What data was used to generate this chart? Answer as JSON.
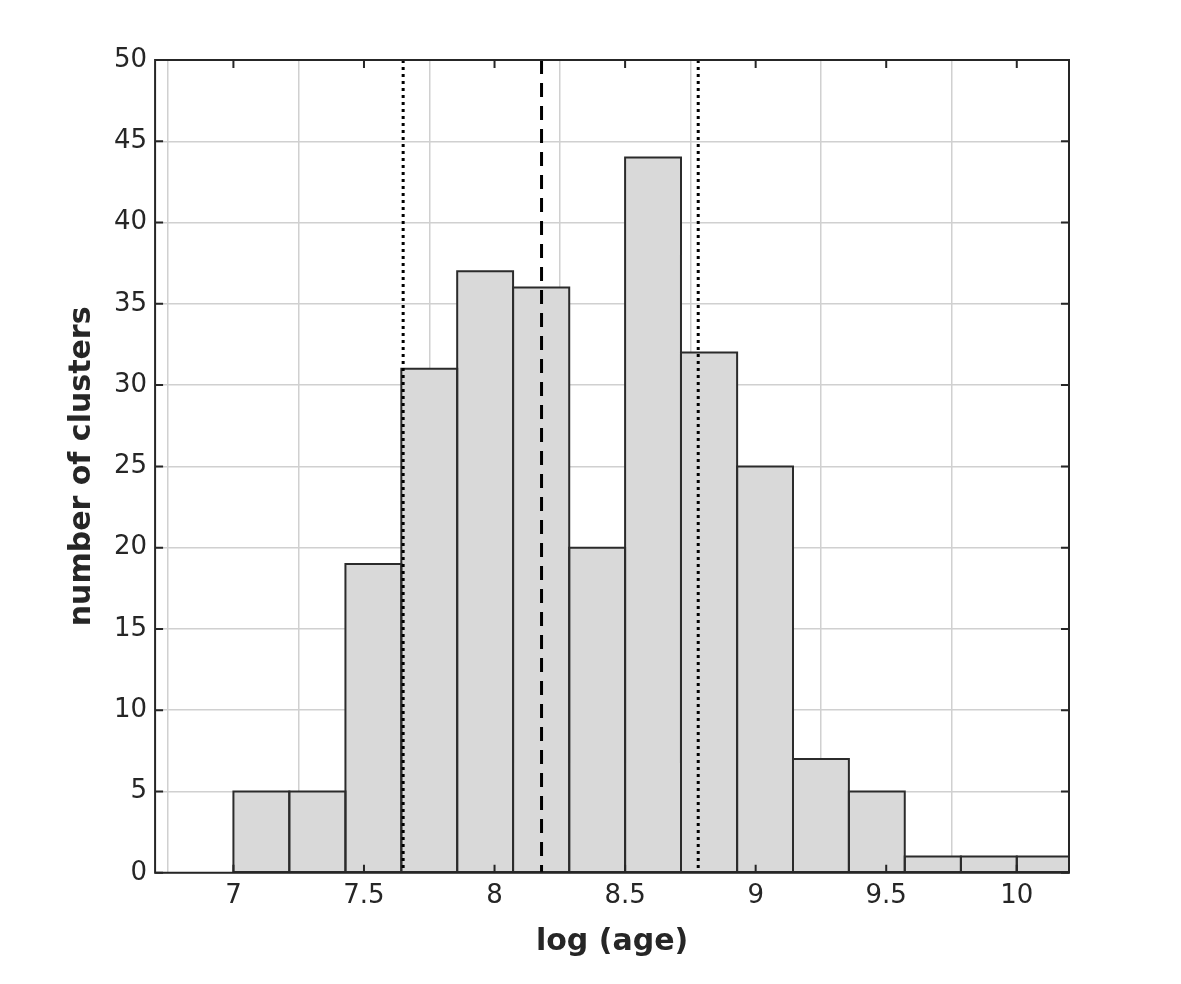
{
  "chart_data": {
    "type": "histogram",
    "xlabel": "log (age)",
    "ylabel": "number of clusters",
    "bins": [
      7,
      7.214,
      7.429,
      7.643,
      7.857,
      8.071,
      8.286,
      8.5,
      8.714,
      8.929,
      9.143,
      9.357,
      9.571,
      9.786,
      10,
      10.2
    ],
    "values": [
      5,
      5,
      19,
      31,
      37,
      36,
      20,
      44,
      32,
      25,
      7,
      5,
      1,
      1,
      1
    ],
    "color": "#d9d9d9",
    "xlim": [
      6.7,
      10.2
    ],
    "xticks": [
      7,
      7.5,
      8,
      8.5,
      9,
      9.5,
      10
    ],
    "ylim": [
      0,
      50
    ],
    "yticks": [
      0,
      5,
      10,
      15,
      20,
      25,
      30,
      35,
      40,
      45,
      50
    ],
    "grid": true,
    "ref_lines": [
      {
        "axis": "x",
        "value": 7.65,
        "line_style": "dotted"
      },
      {
        "axis": "x",
        "value": 8.18,
        "line_style": "dashed"
      },
      {
        "axis": "x",
        "value": 8.78,
        "line_style": "dotted"
      }
    ]
  }
}
